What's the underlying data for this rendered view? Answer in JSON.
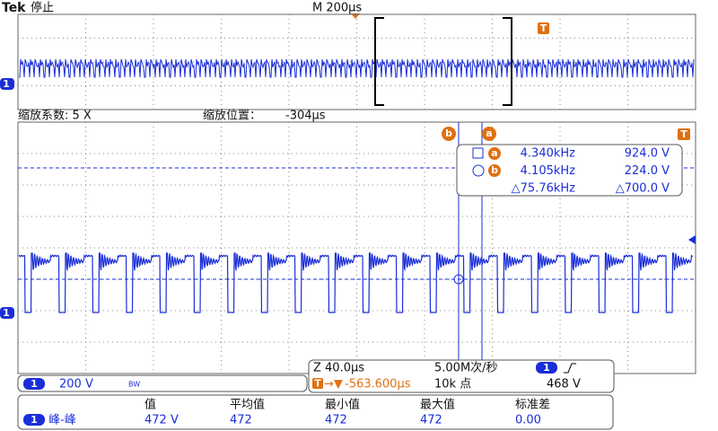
{
  "header": {
    "brand": "Tek",
    "status": "停止",
    "timebase": "M 200µs",
    "trigger_marker": "T"
  },
  "zoom": {
    "factor": "缩放系数: 5 X",
    "position_label": "缩放位置：",
    "position": "-304µs"
  },
  "channel_marker": "1",
  "cursors": {
    "a": "a",
    "b": "b",
    "rows": [
      {
        "freq": "4.340kHz",
        "volt": "924.0 V"
      },
      {
        "freq": "4.105kHz",
        "volt": "224.0 V"
      },
      {
        "freq": "△75.76kHz",
        "volt": "△700.0 V"
      }
    ]
  },
  "status_bar": {
    "channel": "1",
    "scale": "200 V",
    "bw": "BW",
    "zoom_time": "Z 40.0µs",
    "trigger_marker": "T",
    "trigger_pos": "-563.600µs",
    "sample_rate": "5.00M次/秒",
    "record": "10k 点",
    "trigger_channel": "1",
    "trigger_level": "468 V"
  },
  "measurements": {
    "headers": [
      "值",
      "平均值",
      "最小值",
      "最大值",
      "标准差"
    ],
    "rows": [
      {
        "channel": "1",
        "name": "峰-峰",
        "cells": [
          "472 V",
          "472",
          "472",
          "472",
          "0.00"
        ]
      }
    ]
  }
}
